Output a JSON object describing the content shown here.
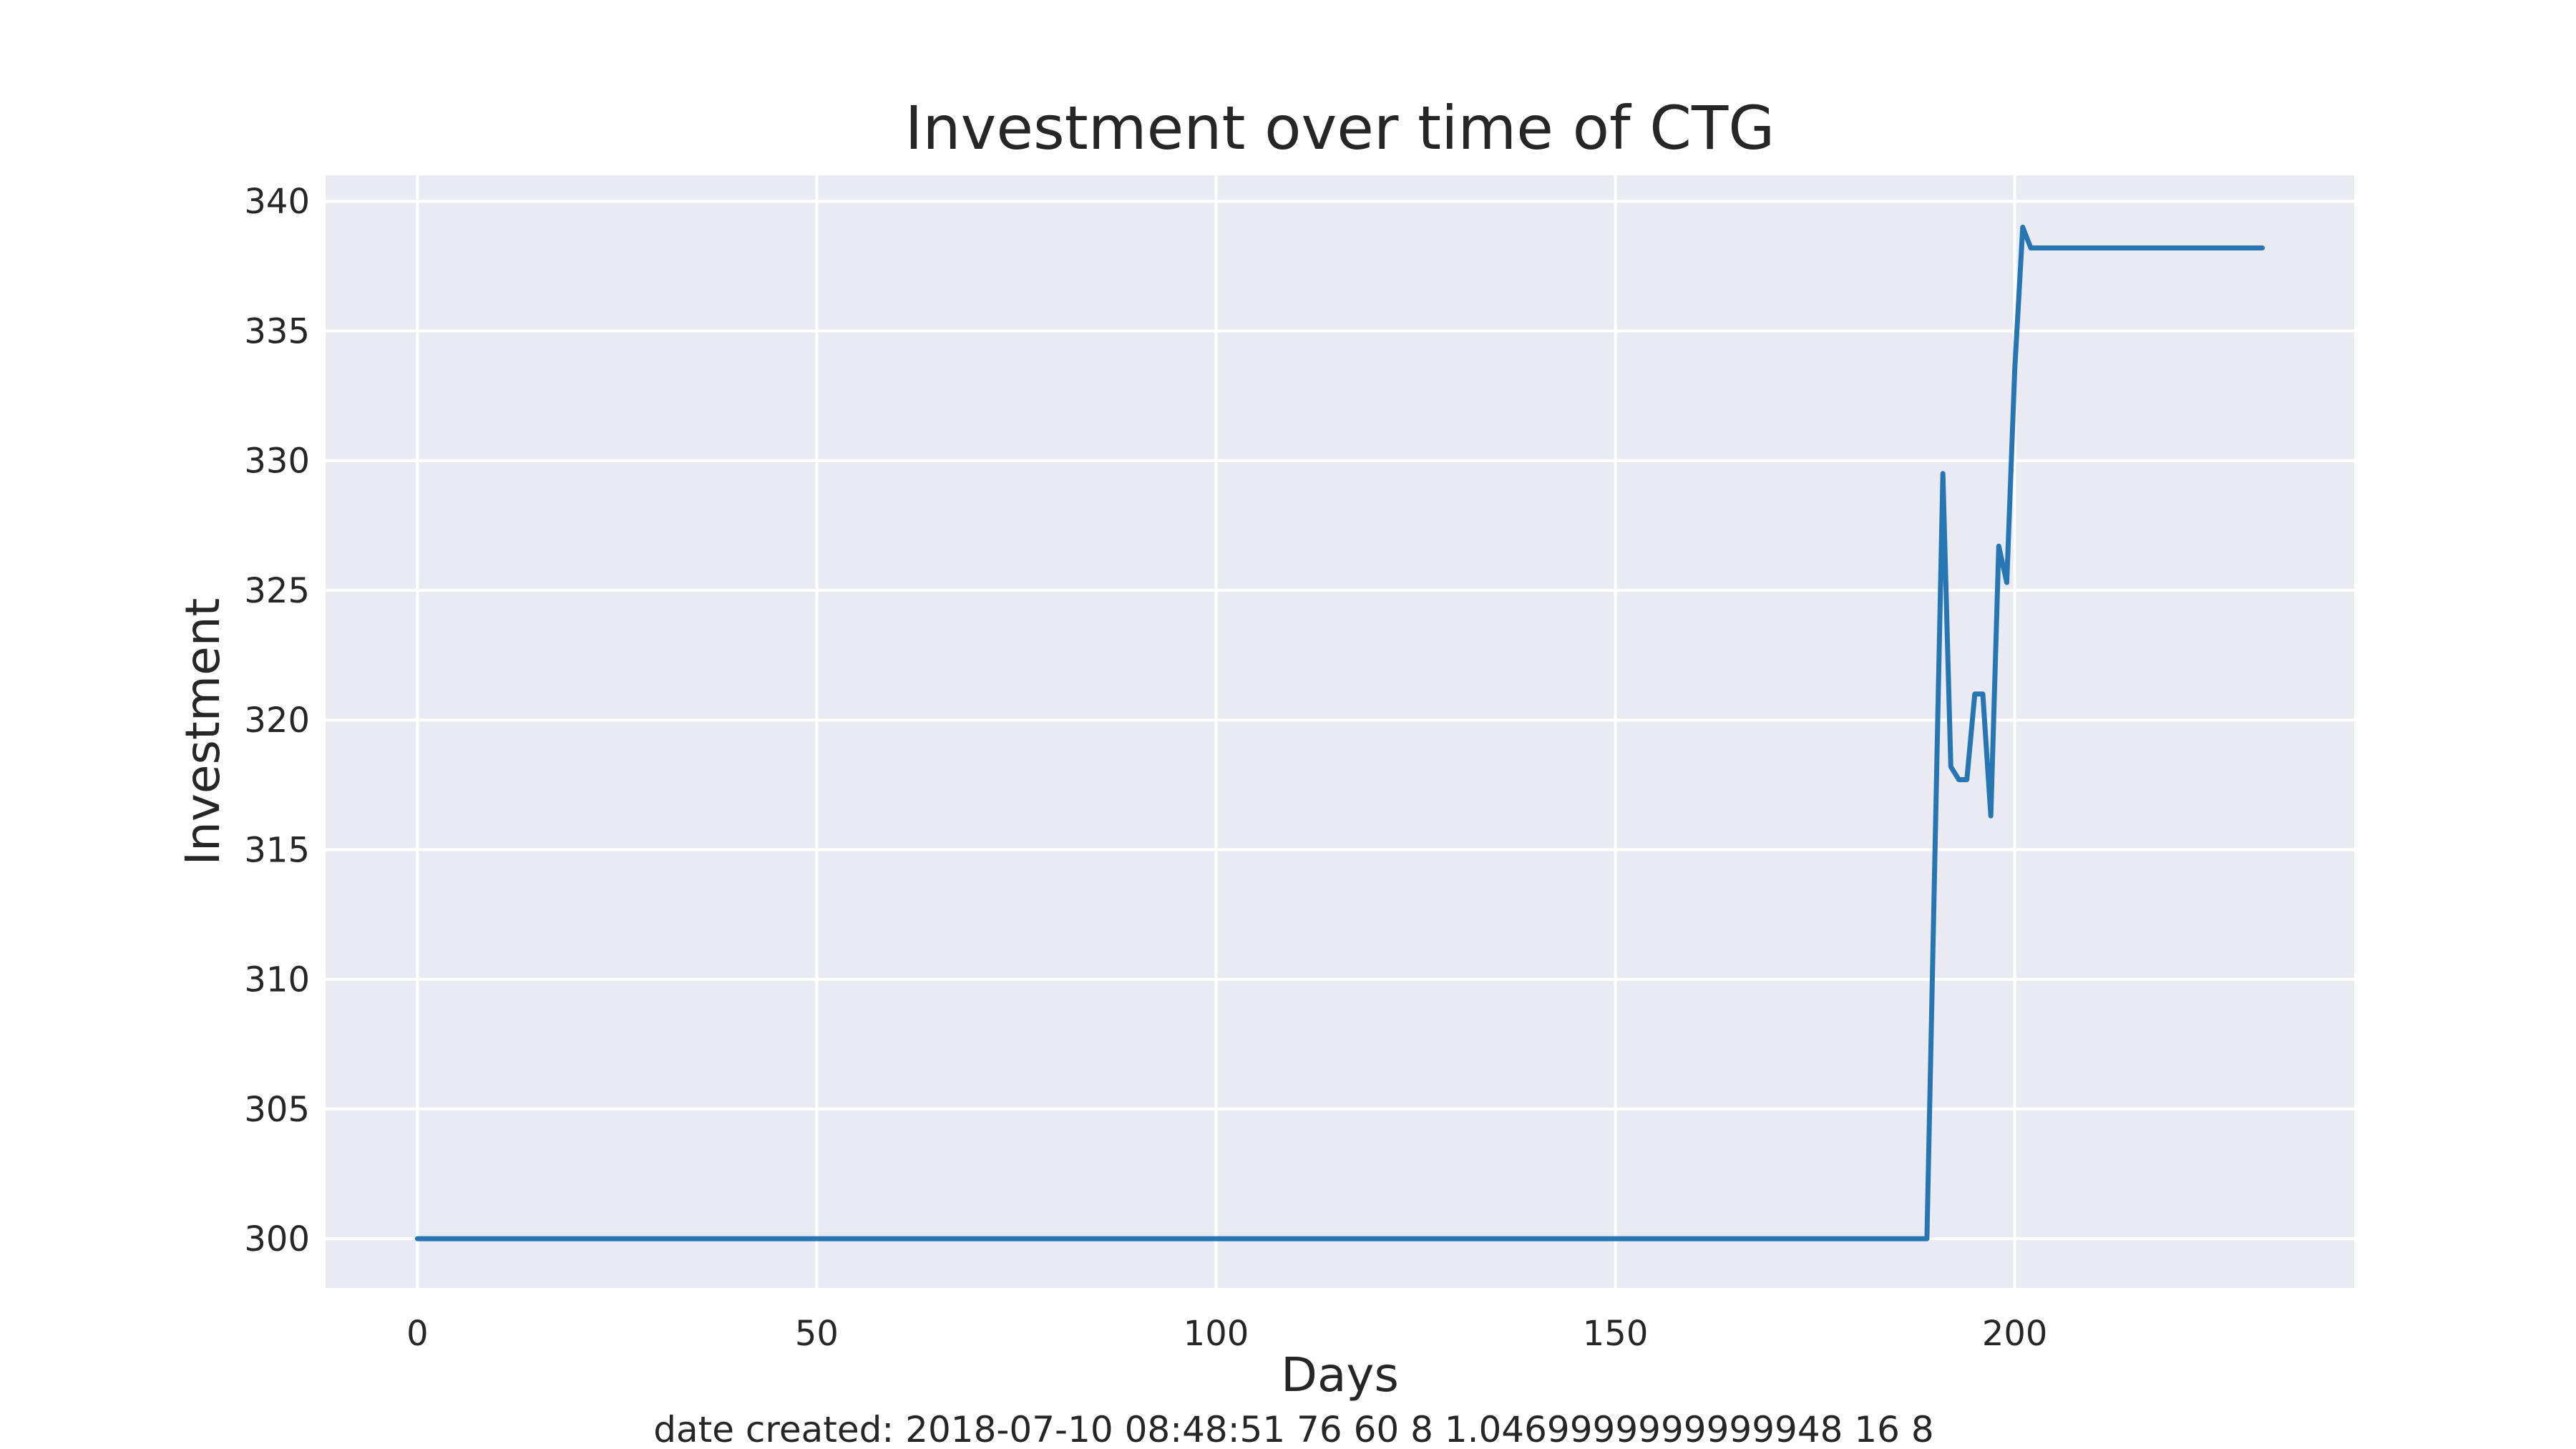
{
  "chart_data": {
    "type": "line",
    "title": "Investment over time of CTG",
    "xlabel": "Days",
    "ylabel": "Investment",
    "footnote": "date created: 2018-07-10 08:48:51 76 60 8 1.0469999999999948 16 8",
    "xlim": [
      -11.5,
      242.5
    ],
    "ylim": [
      298.1,
      341
    ],
    "xticks": [
      0,
      50,
      100,
      150,
      200
    ],
    "yticks": [
      300,
      305,
      310,
      315,
      320,
      325,
      330,
      335,
      340
    ],
    "grid": true,
    "style": {
      "background": "#EAEAF2",
      "grid_color": "#FFFFFF",
      "line_color": "#2776B4"
    },
    "series": [
      {
        "x": [
          0,
          189,
          191,
          192,
          193,
          194,
          195,
          196,
          197,
          198,
          199,
          200,
          201,
          202,
          231
        ],
        "y": [
          300,
          300,
          329.5,
          318.2,
          317.7,
          317.7,
          321,
          321,
          316.3,
          326.7,
          325.3,
          333.5,
          339,
          338.2,
          338.2
        ]
      }
    ]
  }
}
